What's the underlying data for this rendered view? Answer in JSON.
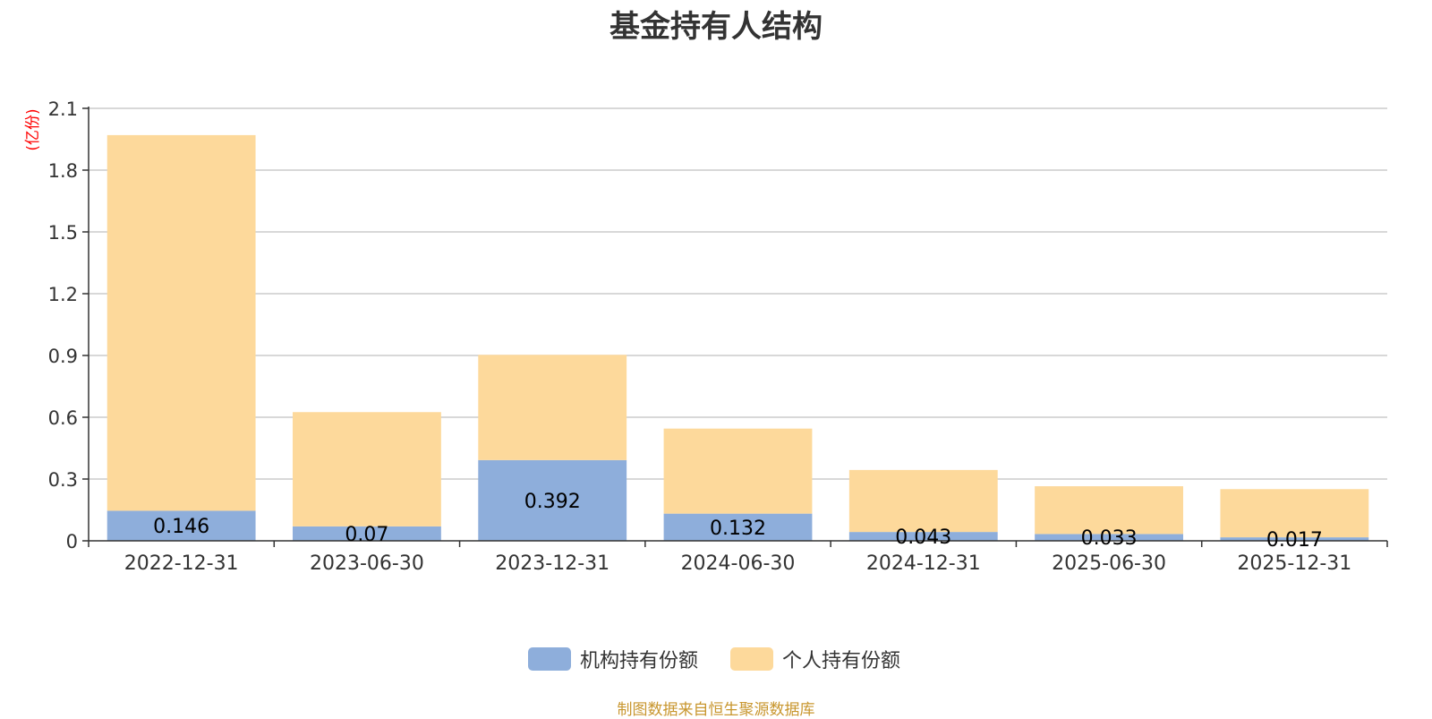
{
  "chart_data": {
    "type": "bar",
    "stacked": true,
    "title": "基金持有人结构",
    "unit_label": "(亿份)",
    "categories": [
      "2022-12-31",
      "2023-06-30",
      "2023-12-31",
      "2024-06-30",
      "2024-12-31",
      "2025-06-30",
      "2025-12-31"
    ],
    "series": [
      {
        "name": "机构持有份额",
        "color": "#8eaedb",
        "values": [
          0.146,
          0.07,
          0.392,
          0.132,
          0.043,
          0.033,
          0.017
        ],
        "labels": [
          "0.146",
          "0.07",
          "0.392",
          "0.132",
          "0.043",
          "0.033",
          "0.017"
        ]
      },
      {
        "name": "个人持有份额",
        "color": "#fdd99b",
        "values": [
          1.824,
          0.555,
          0.511,
          0.413,
          0.301,
          0.232,
          0.234
        ]
      }
    ],
    "y_ticks": [
      "0",
      "0.3",
      "0.6",
      "0.9",
      "1.2",
      "1.5",
      "1.8",
      "2.1"
    ],
    "ylim": [
      0,
      2.1
    ],
    "grid": true,
    "legend_position": "bottom-center"
  },
  "source_note": "制图数据来自恒生聚源数据库"
}
